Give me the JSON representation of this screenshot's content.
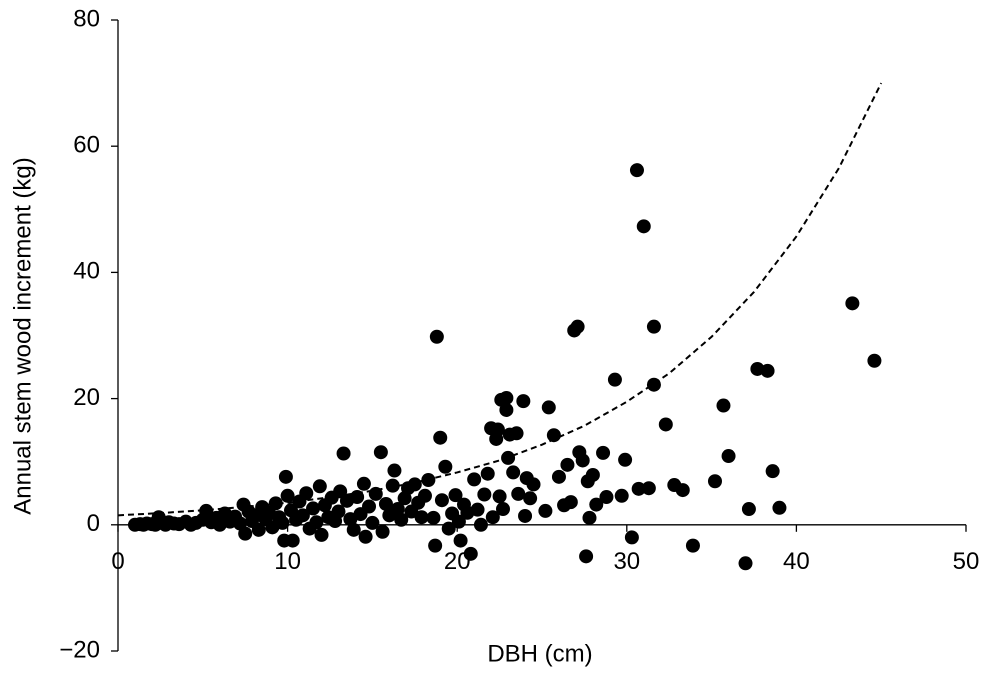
{
  "chart_data": {
    "type": "scatter",
    "x_label": "DBH (cm)",
    "y_label": "Annual stem wood increment (kg)",
    "color": "#000000",
    "x": [
      1,
      1.3,
      1.5,
      1.7,
      2,
      2.2,
      2.4,
      2.6,
      2.8,
      3,
      3.3,
      3.6,
      4,
      4.3,
      4.6,
      5,
      5.2,
      5.5,
      5.8,
      6,
      6.3,
      6.6,
      6.9,
      7.2,
      7.4,
      7.5,
      7.7,
      7.9,
      8.1,
      8.3,
      8.5,
      8.7,
      8.9,
      9.1,
      9.3,
      9.5,
      9.7,
      9.8,
      9.9,
      10,
      10.2,
      10.3,
      10.5,
      10.7,
      10.9,
      11.1,
      11.3,
      11.5,
      11.7,
      11.9,
      12,
      12.2,
      12.4,
      12.6,
      12.8,
      13,
      13.1,
      13.3,
      13.5,
      13.7,
      13.9,
      14.1,
      14.3,
      14.5,
      14.6,
      14.8,
      15,
      15.2,
      15.5,
      15.6,
      15.8,
      16,
      16.2,
      16.3,
      16.5,
      16.7,
      16.9,
      17.1,
      17.3,
      17.5,
      17.7,
      17.9,
      18.1,
      18.3,
      18.6,
      18.8,
      18.7,
      19,
      19.1,
      19.3,
      19.5,
      19.7,
      19.9,
      20.1,
      20.2,
      20.4,
      20.6,
      20.8,
      21,
      21.2,
      21.4,
      21.6,
      21.8,
      22,
      22.1,
      22.3,
      22.4,
      22.5,
      22.6,
      22.7,
      22.9,
      22.9,
      23,
      23.1,
      23.3,
      23.5,
      23.6,
      23.9,
      24,
      24.1,
      24.3,
      24.5,
      25.2,
      25.4,
      25.7,
      26,
      26.3,
      26.5,
      26.7,
      26.9,
      27.1,
      27.2,
      27.4,
      27.6,
      27.7,
      27.8,
      28,
      28.2,
      28.6,
      28.8,
      29.3,
      29.7,
      29.9,
      30.3,
      30.6,
      30.7,
      31,
      31.3,
      31.6,
      31.6,
      32.3,
      32.8,
      33.3,
      33.9,
      35.2,
      35.7,
      36,
      37,
      37.2,
      37.7,
      38.3,
      38.6,
      39,
      43.3,
      44.6
    ],
    "values": [
      0,
      0.1,
      0,
      0.2,
      0.1,
      0,
      1.2,
      0.3,
      0,
      0.4,
      0.2,
      0.1,
      0.5,
      0,
      0.3,
      0.8,
      2.2,
      0.4,
      1.1,
      0,
      1.8,
      0.5,
      1.3,
      0.2,
      3.2,
      -1.4,
      2.1,
      0.6,
      1.5,
      -0.8,
      2.8,
      0.9,
      1.9,
      -0.4,
      3.4,
      1.2,
      0.3,
      -2.5,
      7.6,
      4.6,
      2.3,
      -2.5,
      0.8,
      3.7,
      1.5,
      5,
      -0.6,
      2.6,
      0.4,
      6.1,
      -1.6,
      3.1,
      1.2,
      4.3,
      0.6,
      2.1,
      5.3,
      11.3,
      3.8,
      0.9,
      -0.8,
      4.4,
      1.7,
      6.5,
      -1.9,
      2.9,
      0.3,
      4.9,
      11.5,
      -1.1,
      3.3,
      1.5,
      6.2,
      8.6,
      2.5,
      0.8,
      4.2,
      5.8,
      2.1,
      6.4,
      3.5,
      1.2,
      4.6,
      7.1,
      1.1,
      29.8,
      -3.3,
      13.8,
      3.9,
      9.2,
      -0.6,
      1.8,
      4.7,
      0.5,
      -2.5,
      3.2,
      1.9,
      -4.6,
      7.2,
      2.4,
      0,
      4.8,
      8.1,
      15.3,
      1.2,
      13.6,
      15.1,
      4.5,
      19.8,
      2.5,
      20.1,
      18.2,
      10.6,
      14.3,
      8.3,
      14.5,
      4.9,
      19.6,
      1.4,
      7.4,
      4.2,
      6.4,
      2.2,
      18.6,
      14.2,
      7.6,
      3.1,
      9.5,
      3.6,
      30.8,
      31.4,
      11.5,
      10.2,
      -5,
      6.9,
      1.1,
      7.9,
      3.2,
      11.4,
      4.4,
      23,
      4.6,
      10.3,
      -2,
      56.2,
      5.7,
      47.3,
      5.8,
      31.4,
      22.2,
      15.9,
      6.3,
      5.5,
      -3.3,
      6.9,
      18.9,
      10.9,
      -6.1,
      2.5,
      24.7,
      24.4,
      8.5,
      2.7,
      35.1,
      26
    ],
    "trendline": {
      "x": [
        0,
        2.5,
        5,
        7.5,
        10,
        12.5,
        15,
        17.5,
        20,
        22.5,
        25,
        27.5,
        30,
        32.5,
        35,
        37.5,
        40,
        42.5,
        45
      ],
      "values": [
        1.5,
        1.86,
        2.3,
        2.85,
        3.5,
        4.36,
        5.4,
        6.68,
        8.3,
        10.2,
        12.7,
        15.7,
        19.5,
        24,
        29.8,
        36.9,
        45.7,
        56.5,
        70
      ],
      "color": "#000000",
      "dashed": true
    },
    "xlim": [
      0,
      50
    ],
    "xticks": [
      0,
      10,
      20,
      30,
      40,
      50
    ],
    "ylim": [
      -20,
      80
    ],
    "yticks": [
      {
        "value": -20,
        "label": "−20"
      },
      0,
      20,
      40,
      60,
      80
    ]
  }
}
